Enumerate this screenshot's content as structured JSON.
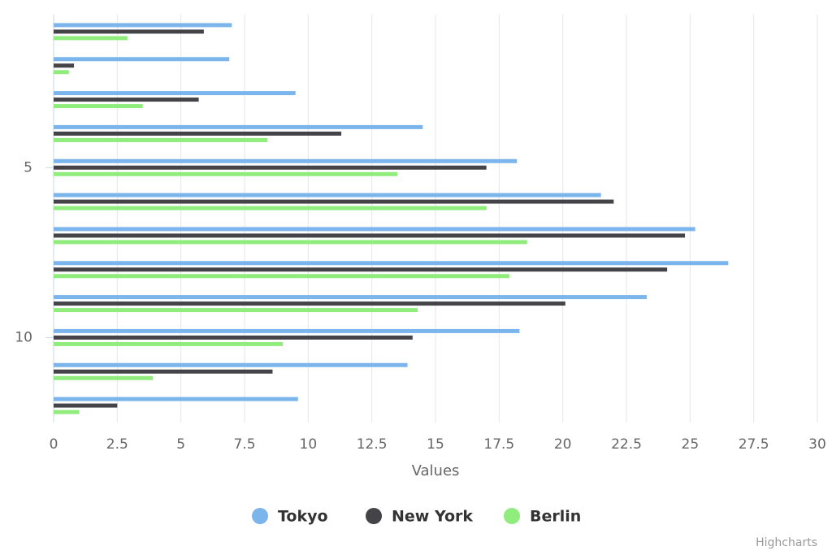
{
  "chart_data": {
    "type": "bar",
    "x_axis_title": "Values",
    "x": [
      1,
      2,
      3,
      4,
      5,
      6,
      7,
      8,
      9,
      10,
      11,
      12
    ],
    "xlim": [
      0.5,
      12.5
    ],
    "xticks": [
      5,
      10
    ],
    "ylim": [
      0,
      30
    ],
    "yticks": [
      0,
      2.5,
      5,
      7.5,
      10,
      12.5,
      15,
      17.5,
      20,
      22.5,
      25,
      27.5,
      30
    ],
    "grid": true,
    "legend": "bottom",
    "series": [
      {
        "name": "Tokyo",
        "color": "#7cb5ec",
        "values": [
          7.0,
          6.9,
          9.5,
          14.5,
          18.2,
          21.5,
          25.2,
          26.5,
          23.3,
          18.3,
          13.9,
          9.6
        ]
      },
      {
        "name": "New York",
        "color": "#434348",
        "values": [
          5.9,
          0.8,
          5.7,
          11.3,
          17.0,
          22.0,
          24.8,
          24.1,
          20.1,
          14.1,
          8.6,
          2.5
        ]
      },
      {
        "name": "Berlin",
        "color": "#90ed7d",
        "values": [
          2.9,
          0.6,
          3.5,
          8.4,
          13.5,
          17.0,
          18.6,
          17.9,
          14.3,
          9.0,
          3.9,
          1.0
        ]
      }
    ],
    "credits": "Highcharts"
  }
}
